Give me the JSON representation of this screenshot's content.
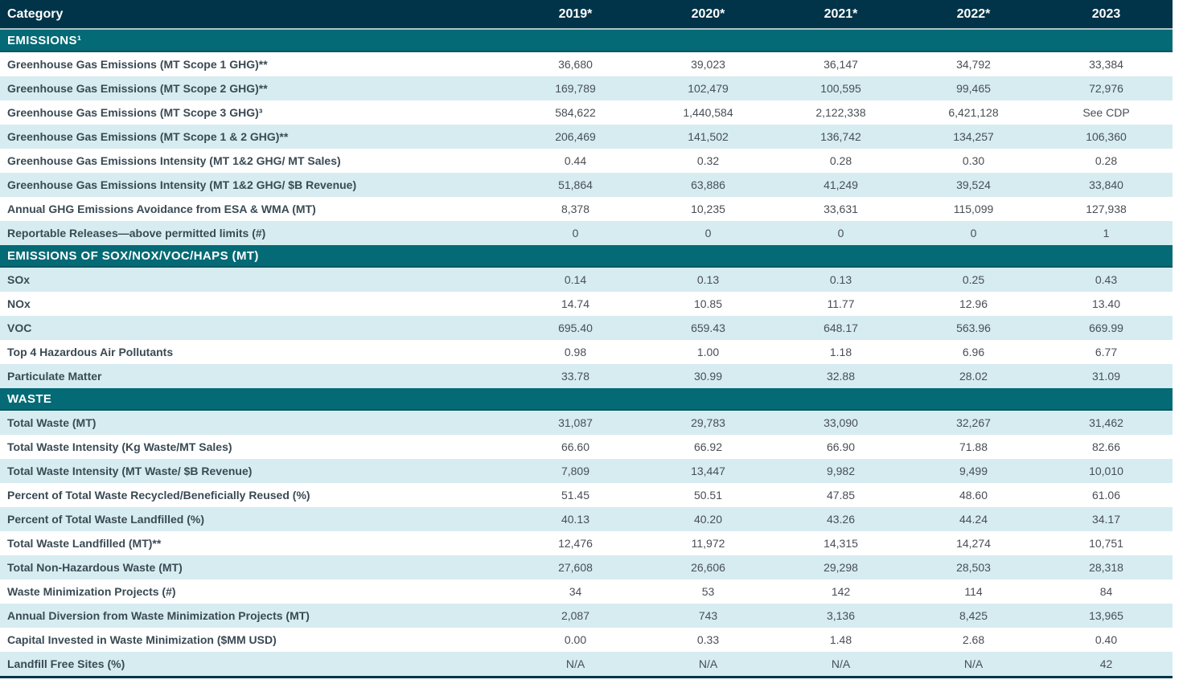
{
  "colors": {
    "header_bg": "#013349",
    "section_bg": "#046a75",
    "row_alt_bg": "#d6ecf1",
    "row_bg": "#ffffff",
    "header_text": "#ffffff",
    "label_text": "#3a4a54",
    "value_text": "#484f54",
    "bottom_border": "#013349"
  },
  "table": {
    "category_header": "Category",
    "year_columns": [
      "2019*",
      "2020*",
      "2021*",
      "2022*",
      "2023"
    ],
    "sections": [
      {
        "title": "EMISSIONS¹",
        "first_shade": "white",
        "rows": [
          {
            "label": "Greenhouse Gas Emissions (MT Scope 1 GHG)**",
            "values": [
              "36,680",
              "39,023",
              "36,147",
              "34,792",
              "33,384"
            ]
          },
          {
            "label": "Greenhouse Gas Emissions (MT Scope 2 GHG)**",
            "values": [
              "169,789",
              "102,479",
              "100,595",
              "99,465",
              "72,976"
            ]
          },
          {
            "label": "Greenhouse Gas Emissions (MT Scope 3 GHG)³",
            "values": [
              "584,622",
              "1,440,584",
              "2,122,338",
              "6,421,128",
              "See CDP"
            ]
          },
          {
            "label": "Greenhouse Gas Emissions (MT Scope 1 & 2 GHG)**",
            "values": [
              "206,469",
              "141,502",
              "136,742",
              "134,257",
              "106,360"
            ]
          },
          {
            "label": "Greenhouse Gas Emissions Intensity (MT 1&2 GHG/ MT Sales)",
            "values": [
              "0.44",
              "0.32",
              "0.28",
              "0.30",
              "0.28"
            ]
          },
          {
            "label": "Greenhouse Gas Emissions Intensity (MT 1&2 GHG/ $B Revenue)",
            "values": [
              "51,864",
              "63,886",
              "41,249",
              "39,524",
              "33,840"
            ]
          },
          {
            "label": "Annual GHG Emissions Avoidance from ESA & WMA (MT)",
            "values": [
              "8,378",
              "10,235",
              "33,631",
              "115,099",
              "127,938"
            ]
          },
          {
            "label": "Reportable Releases—above permitted limits (#)",
            "values": [
              "0",
              "0",
              "0",
              "0",
              "1"
            ]
          }
        ]
      },
      {
        "title": "EMISSIONS OF SOX/NOX/VOC/HAPS (MT)",
        "first_shade": "cyan",
        "rows": [
          {
            "label": "SOx",
            "values": [
              "0.14",
              "0.13",
              "0.13",
              "0.25",
              "0.43"
            ]
          },
          {
            "label": "NOx",
            "values": [
              "14.74",
              "10.85",
              "11.77",
              "12.96",
              "13.40"
            ]
          },
          {
            "label": "VOC",
            "values": [
              "695.40",
              "659.43",
              "648.17",
              "563.96",
              "669.99"
            ]
          },
          {
            "label": "Top 4 Hazardous Air Pollutants",
            "values": [
              "0.98",
              "1.00",
              "1.18",
              "6.96",
              "6.77"
            ]
          },
          {
            "label": "Particulate Matter",
            "values": [
              "33.78",
              "30.99",
              "32.88",
              "28.02",
              "31.09"
            ]
          }
        ]
      },
      {
        "title": "WASTE",
        "first_shade": "cyan",
        "rows": [
          {
            "label": "Total Waste (MT)",
            "values": [
              "31,087",
              "29,783",
              "33,090",
              "32,267",
              "31,462"
            ]
          },
          {
            "label": "Total Waste Intensity (Kg Waste/MT Sales)",
            "values": [
              "66.60",
              "66.92",
              "66.90",
              "71.88",
              "82.66"
            ]
          },
          {
            "label": "Total Waste Intensity (MT Waste/ $B Revenue)",
            "values": [
              "7,809",
              "13,447",
              "9,982",
              "9,499",
              "10,010"
            ]
          },
          {
            "label": "Percent of Total Waste Recycled/Beneficially Reused (%)",
            "values": [
              "51.45",
              "50.51",
              "47.85",
              "48.60",
              "61.06"
            ]
          },
          {
            "label": "Percent of Total Waste Landfilled (%)",
            "values": [
              "40.13",
              "40.20",
              "43.26",
              "44.24",
              "34.17"
            ]
          },
          {
            "label": "Total Waste Landfilled (MT)**",
            "values": [
              "12,476",
              "11,972",
              "14,315",
              "14,274",
              "10,751"
            ]
          },
          {
            "label": "Total Non-Hazardous Waste (MT)",
            "values": [
              "27,608",
              "26,606",
              "29,298",
              "28,503",
              "28,318"
            ]
          },
          {
            "label": "Waste Minimization Projects (#)",
            "values": [
              "34",
              "53",
              "142",
              "114",
              "84"
            ]
          },
          {
            "label": "Annual Diversion from Waste Minimization Projects (MT)",
            "values": [
              "2,087",
              "743",
              "3,136",
              "8,425",
              "13,965"
            ]
          },
          {
            "label": "Capital Invested in Waste Minimization ($MM USD)",
            "values": [
              "0.00",
              "0.33",
              "1.48",
              "2.68",
              "0.40"
            ]
          },
          {
            "label": "Landfill Free Sites (%)",
            "values": [
              "N/A",
              "N/A",
              "N/A",
              "N/A",
              "42"
            ]
          }
        ]
      }
    ]
  }
}
